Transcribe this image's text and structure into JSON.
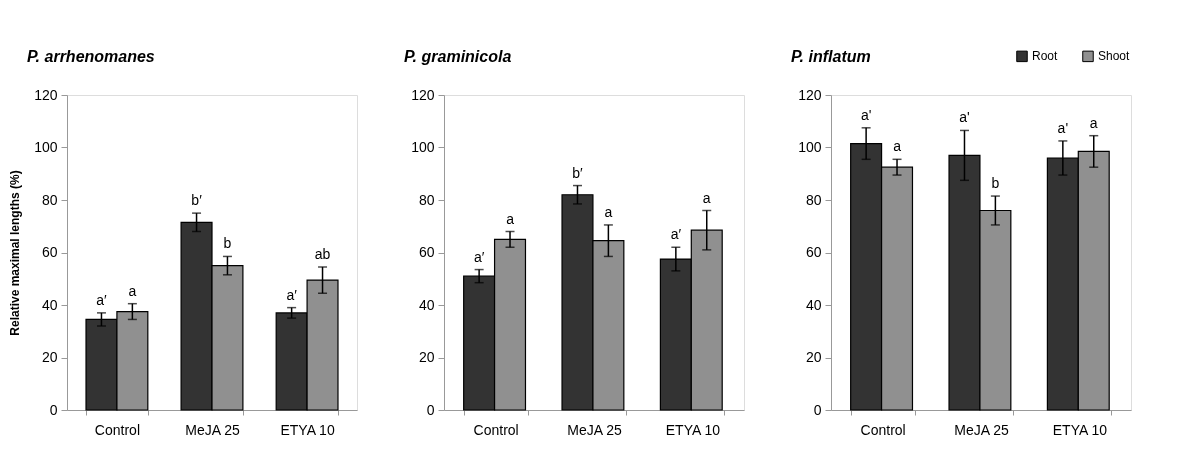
{
  "chart_data": [
    {
      "type": "bar",
      "title": "P. arrhenomanes",
      "ylabel": "Relative maximal lengths  (%)",
      "categories": [
        "Control",
        "MeJA 25",
        "ETYA 10"
      ],
      "ylim": [
        0,
        120
      ],
      "yticks": [
        0,
        20,
        40,
        60,
        80,
        100,
        120
      ],
      "grid": false,
      "legend": false,
      "series": [
        {
          "color": "#333333",
          "values": [
            34.5,
            71.5,
            37
          ],
          "errors": [
            2.5,
            3.5,
            2
          ],
          "value_labels": [
            "a′",
            "b′",
            "a′"
          ]
        },
        {
          "color": "#909090",
          "values": [
            37.5,
            55,
            49.5
          ],
          "errors": [
            3,
            3.5,
            5
          ],
          "value_labels": [
            "a",
            "b",
            "ab"
          ]
        }
      ]
    },
    {
      "type": "bar",
      "title": "P. graminicola",
      "categories": [
        "Control",
        "MeJA 25",
        "ETYA 10"
      ],
      "ylim": [
        0,
        120
      ],
      "yticks": [
        0,
        20,
        40,
        60,
        80,
        100,
        120
      ],
      "grid": false,
      "legend": false,
      "series": [
        {
          "color": "#333333",
          "values": [
            51,
            82,
            57.5
          ],
          "errors": [
            2.5,
            3.5,
            4.5
          ],
          "value_labels": [
            "a′",
            "b′",
            "a′"
          ]
        },
        {
          "color": "#909090",
          "values": [
            65,
            64.5,
            68.5
          ],
          "errors": [
            3,
            6,
            7.5
          ],
          "value_labels": [
            "a",
            "a",
            "a"
          ]
        }
      ]
    },
    {
      "type": "bar",
      "title": "P. inflatum",
      "categories": [
        "Control",
        "MeJA 25",
        "ETYA 10"
      ],
      "ylim": [
        0,
        120
      ],
      "yticks": [
        0,
        20,
        40,
        60,
        80,
        100,
        120
      ],
      "grid": false,
      "legend": "top right",
      "series": [
        {
          "name": "Root",
          "color": "#333333",
          "values": [
            101.5,
            97,
            96
          ],
          "errors": [
            6,
            9.5,
            6.5
          ],
          "value_labels": [
            "a'",
            "a'",
            "a'"
          ]
        },
        {
          "name": "Shoot",
          "color": "#909090",
          "values": [
            92.5,
            76,
            98.5
          ],
          "errors": [
            3,
            5.5,
            6
          ],
          "value_labels": [
            "a",
            "b",
            "a"
          ]
        }
      ]
    }
  ]
}
